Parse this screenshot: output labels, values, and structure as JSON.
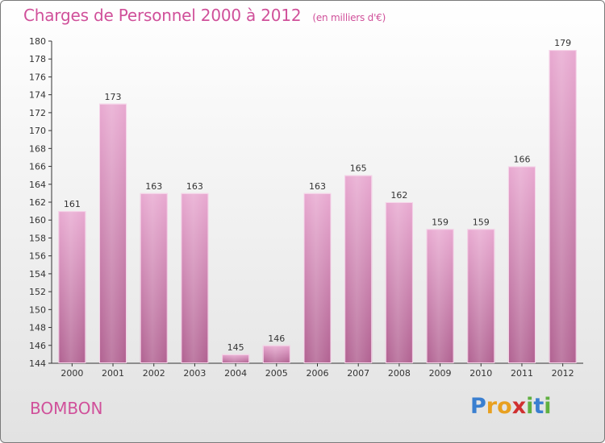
{
  "title": "Charges de Personnel 2000 à 2012",
  "subtitle": "(en milliers d'€)",
  "commune": "BOMBON",
  "logo": {
    "letters": [
      "P",
      "r",
      "o",
      "x",
      "i",
      "t",
      "i"
    ],
    "colors": [
      "#3a7fd0",
      "#e8a020",
      "#e8a020",
      "#d03030",
      "#60b040",
      "#3a7fd0",
      "#60b040"
    ]
  },
  "colors": {
    "bar_top": "#e8a8d0",
    "bar_bottom": "#b06090",
    "text_accent": "#d0509a"
  },
  "chart_data": {
    "type": "bar",
    "title": "Charges de Personnel 2000 à 2012",
    "subtitle": "(en milliers d'€)",
    "categories": [
      "2000",
      "2001",
      "2002",
      "2003",
      "2004",
      "2005",
      "2006",
      "2007",
      "2008",
      "2009",
      "2010",
      "2011",
      "2012"
    ],
    "values": [
      161,
      173,
      163,
      163,
      145,
      146,
      163,
      165,
      162,
      159,
      159,
      166,
      179
    ],
    "value_labels": [
      "161",
      "173",
      "163",
      "163",
      "145",
      "146",
      "163",
      "165",
      "162",
      "159",
      "159",
      "166",
      "179"
    ],
    "ylim": [
      144,
      180
    ],
    "yticks": [
      144,
      146,
      148,
      150,
      152,
      154,
      156,
      158,
      160,
      162,
      164,
      166,
      168,
      170,
      172,
      174,
      176,
      178,
      180
    ],
    "grid": false,
    "legend": "none"
  }
}
